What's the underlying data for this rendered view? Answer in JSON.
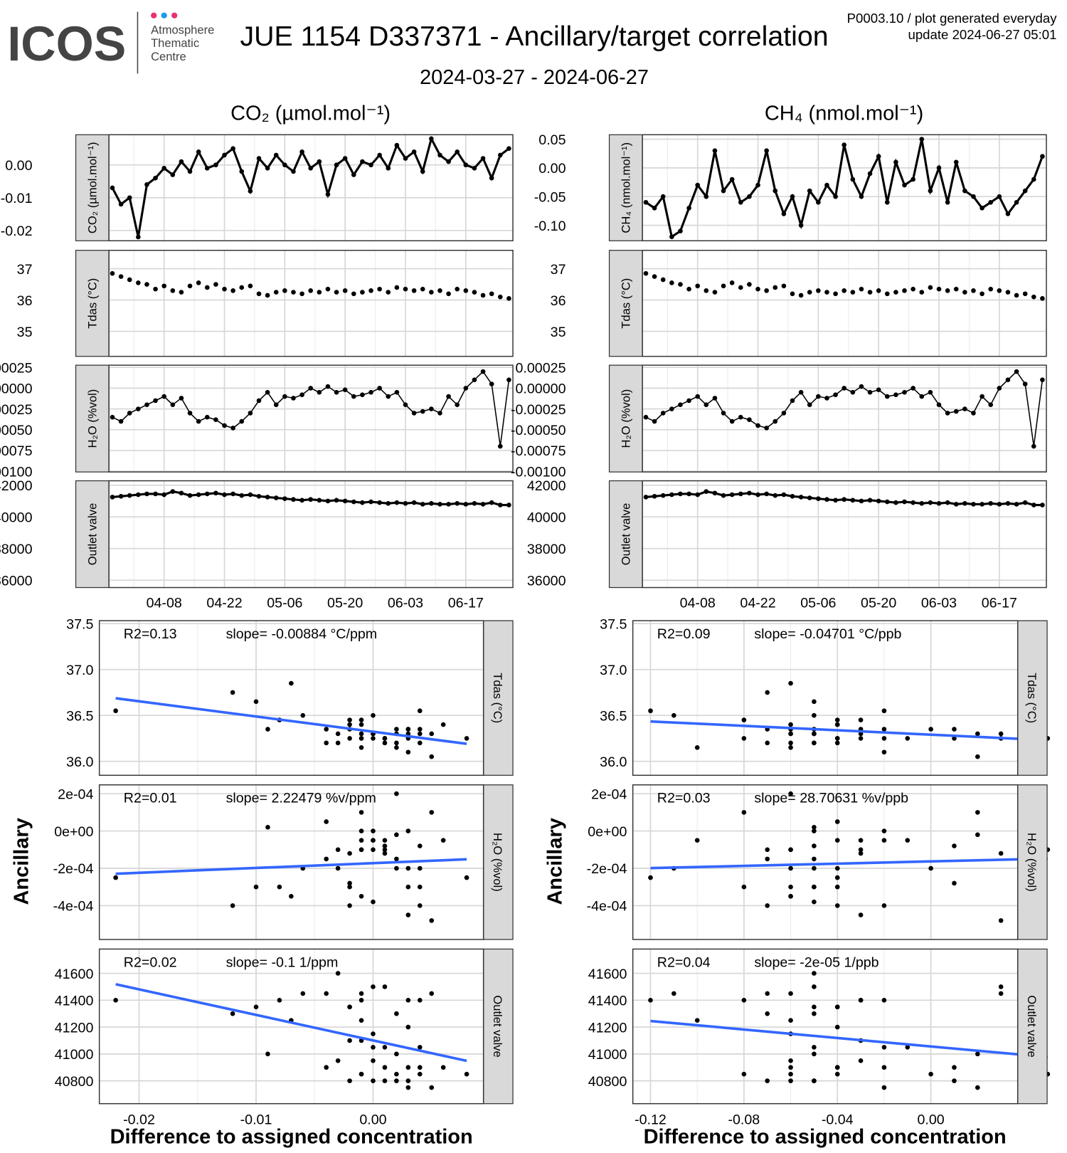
{
  "header": {
    "logo": "ICOS",
    "logo_sub": [
      "Atmosphere",
      "Thematic",
      "Centre"
    ],
    "title": "JUE 1154 D337371 - Ancillary/target correlation",
    "subtitle": "2024-03-27 - 2024-06-27",
    "meta_line1": "P0003.10 / plot generated everyday",
    "meta_line2": "update  2024-06-27 05:01",
    "colors": {
      "logo_gray": "#444444",
      "dot_pink": "#e8336e",
      "dot_blue": "#1e9be9"
    }
  },
  "chart_data": {
    "type": "line",
    "columns": [
      {
        "title": "CO₂ (µmol.mol⁻¹)",
        "target": "co2"
      },
      {
        "title": "CH₄ (nmol.mol⁻¹)",
        "target": "ch4"
      }
    ],
    "time_series": {
      "x_start": "2024-03-27",
      "x_end": "2024-06-27",
      "x_step_days": 2,
      "x_tick_days": [
        12,
        26,
        40,
        54,
        68,
        82
      ],
      "x_tick_labels": [
        "04-08",
        "04-22",
        "05-06",
        "05-20",
        "06-03",
        "06-17"
      ],
      "series": {
        "co2": {
          "strip": "CO₂ (µmol.mol⁻¹)",
          "ticks": [
            0,
            -0.01,
            -0.02
          ],
          "tick_labels": [
            "0.00",
            "-0.01",
            "-0.02"
          ],
          "values": [
            -0.007,
            -0.012,
            -0.01,
            -0.022,
            -0.006,
            -0.004,
            -0.001,
            -0.003,
            0.001,
            -0.002,
            0.004,
            -0.001,
            0.0,
            0.003,
            0.005,
            -0.002,
            -0.008,
            0.002,
            -0.001,
            0.003,
            0.0,
            -0.002,
            0.004,
            -0.001,
            0.001,
            -0.009,
            0.0,
            0.002,
            -0.003,
            0.001,
            0.0,
            0.003,
            -0.001,
            0.006,
            0.002,
            0.004,
            -0.002,
            0.008,
            0.003,
            0.001,
            0.004,
            0.0,
            -0.001,
            0.002,
            -0.004,
            0.003,
            0.005
          ]
        },
        "ch4": {
          "strip": "CH₄ (nmol.mol⁻¹)",
          "ticks": [
            0.05,
            0,
            -0.05,
            -0.1
          ],
          "tick_labels": [
            "0.05",
            "0.00",
            "-0.05",
            "-0.10"
          ],
          "values": [
            -0.06,
            -0.07,
            -0.05,
            -0.12,
            -0.11,
            -0.07,
            -0.03,
            -0.05,
            0.03,
            -0.04,
            -0.02,
            -0.06,
            -0.05,
            -0.03,
            0.03,
            -0.04,
            -0.08,
            -0.05,
            -0.1,
            -0.04,
            -0.06,
            -0.03,
            -0.05,
            0.04,
            -0.02,
            -0.05,
            -0.01,
            0.02,
            -0.06,
            0.01,
            -0.03,
            -0.02,
            0.05,
            -0.04,
            0.0,
            -0.06,
            0.01,
            -0.04,
            -0.05,
            -0.07,
            -0.06,
            -0.05,
            -0.08,
            -0.06,
            -0.04,
            -0.02,
            0.02
          ]
        },
        "tdas": {
          "strip": "Tdas (°C)",
          "ticks": [
            37,
            36,
            35
          ],
          "tick_labels": [
            "37",
            "36",
            "35"
          ],
          "values": [
            36.85,
            36.75,
            36.65,
            36.55,
            36.5,
            36.35,
            36.45,
            36.3,
            36.25,
            36.45,
            36.55,
            36.4,
            36.5,
            36.35,
            36.3,
            36.4,
            36.45,
            36.2,
            36.15,
            36.25,
            36.3,
            36.25,
            36.2,
            36.3,
            36.25,
            36.35,
            36.25,
            36.3,
            36.2,
            36.25,
            36.3,
            36.35,
            36.25,
            36.4,
            36.35,
            36.3,
            36.35,
            36.25,
            36.3,
            36.2,
            36.35,
            36.3,
            36.25,
            36.15,
            36.2,
            36.1,
            36.05
          ]
        },
        "h2o": {
          "strip": "H₂O (%vol)",
          "ticks": [
            0.00025,
            0,
            -0.00025,
            -0.0005,
            -0.00075,
            -0.001
          ],
          "tick_labels": [
            "0.00025",
            "0.00000",
            "-0.00025",
            "-0.00050",
            "-0.00075",
            "-0.00100"
          ],
          "values": [
            -0.00035,
            -0.0004,
            -0.0003,
            -0.00025,
            -0.0002,
            -0.00015,
            -0.0001,
            -0.0002,
            -0.00012,
            -0.0003,
            -0.0004,
            -0.00035,
            -0.00038,
            -0.00045,
            -0.00048,
            -0.0004,
            -0.0003,
            -0.00015,
            -5e-05,
            -0.0002,
            -0.0001,
            -0.00012,
            -8e-05,
            0.0,
            -5e-05,
            2e-05,
            -5e-05,
            -2e-05,
            -0.0001,
            -8e-05,
            -5e-05,
            0.0,
            -0.0001,
            -5e-05,
            -0.0002,
            -0.0003,
            -0.00028,
            -0.00025,
            -0.0003,
            -0.0001,
            -0.0002,
            0.0,
            0.0001,
            0.0002,
            5e-05,
            -0.0007,
            0.0001
          ]
        },
        "outlet": {
          "strip": "Outlet valve",
          "ticks": [
            42000,
            40000,
            38000,
            36000
          ],
          "tick_labels": [
            "42000",
            "40000",
            "38000",
            "36000"
          ],
          "values": [
            41250,
            41300,
            41350,
            41400,
            41450,
            41450,
            41400,
            41600,
            41500,
            41350,
            41400,
            41450,
            41500,
            41400,
            41450,
            41350,
            41400,
            41300,
            41250,
            41200,
            41150,
            41100,
            41050,
            41100,
            41050,
            41000,
            41050,
            41000,
            40950,
            40900,
            40950,
            40900,
            40850,
            40900,
            40850,
            40900,
            40800,
            40850,
            40800,
            40800,
            40850,
            40800,
            40850,
            40800,
            40900,
            40750,
            40750
          ]
        }
      }
    },
    "scatter": {
      "type": "scatter",
      "ylabel": "Ancillary",
      "xlabel": "Difference to assigned concentration",
      "fit_color": "#3366ff",
      "x_ticks": {
        "co2": {
          "values": [
            -0.02,
            -0.01,
            0
          ],
          "labels": [
            "-0.02",
            "-0.01",
            "0.00"
          ]
        },
        "ch4": {
          "values": [
            -0.12,
            -0.08,
            -0.04,
            0
          ],
          "labels": [
            "-0.12",
            "-0.08",
            "-0.04",
            "0.00"
          ]
        }
      },
      "y_ticks": {
        "tdas": {
          "values": [
            37.5,
            37.0,
            36.5,
            36.0
          ],
          "labels": [
            "37.5",
            "37.0",
            "36.5",
            "36.0"
          ]
        },
        "h2o": {
          "values": [
            0.0002,
            0,
            -0.0002,
            -0.0004
          ],
          "labels": [
            "2e-04",
            "0e+00",
            "-2e-04",
            "-4e-04"
          ]
        },
        "outlet": {
          "values": [
            41600,
            41400,
            41200,
            41000,
            40800
          ],
          "labels": [
            "41600",
            "41400",
            "41200",
            "41000",
            "40800"
          ]
        }
      },
      "panels": [
        {
          "target": "co2",
          "ancillary": "tdas",
          "strip": "Tdas (°C)",
          "r2": "R2=0.13",
          "slope": "slope= -0.00884 °C/ppm"
        },
        {
          "target": "co2",
          "ancillary": "h2o",
          "strip": "H₂O (%vol)",
          "r2": "R2=0.01",
          "slope": "slope= 2.22479 %v/ppm"
        },
        {
          "target": "co2",
          "ancillary": "outlet",
          "strip": "Outlet valve",
          "r2": "R2=0.02",
          "slope": "slope= -0.1 1/ppm"
        },
        {
          "target": "ch4",
          "ancillary": "tdas",
          "strip": "Tdas (°C)",
          "r2": "R2=0.09",
          "slope": "slope= -0.04701 °C/ppb"
        },
        {
          "target": "ch4",
          "ancillary": "h2o",
          "strip": "H₂O (%vol)",
          "r2": "R2=0.03",
          "slope": "slope= 28.70631 %v/ppb"
        },
        {
          "target": "ch4",
          "ancillary": "outlet",
          "strip": "Outlet valve",
          "r2": "R2=0.04",
          "slope": "slope= -2e-05 1/ppb"
        }
      ]
    }
  }
}
